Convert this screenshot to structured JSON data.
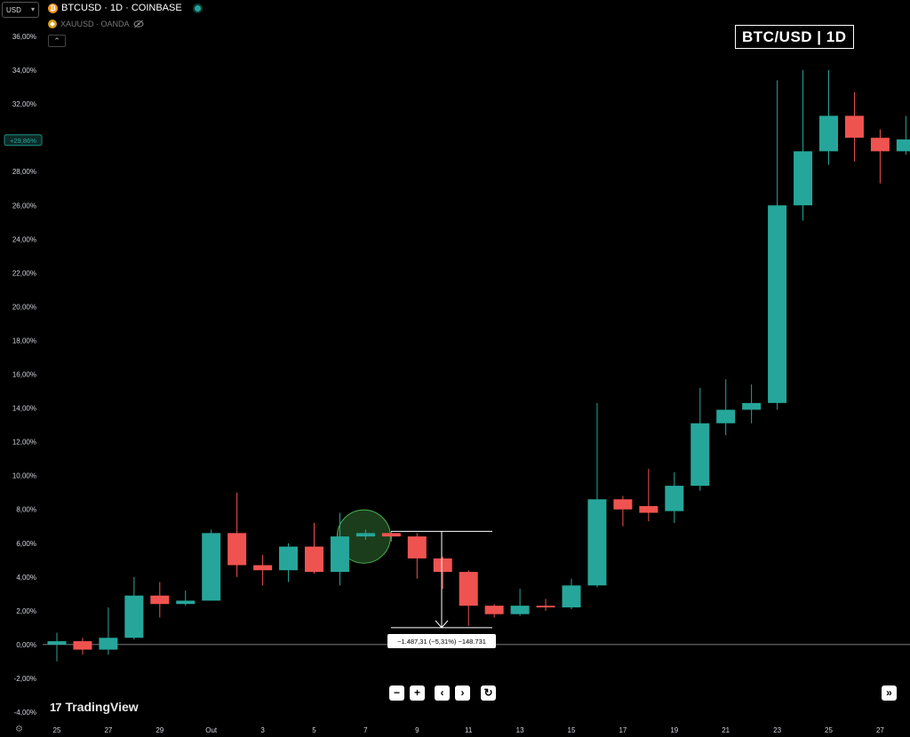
{
  "currency": {
    "value": "USD",
    "chevron": "chevron-down-icon"
  },
  "legend": {
    "symbol": "BTCUSD · 1D · COINBASE",
    "symbol_icon": "bitcoin-icon",
    "compare_symbol": "XAUUSD · OANDA",
    "compare_icon": "gold-icon",
    "hidden_icon": "eye-off-icon",
    "collapse_icon": "chevron-up-icon"
  },
  "title_box": "BTC/USD | 1D",
  "branding": "TradingView",
  "nav": {
    "zoom_out": "−",
    "zoom_in": "+",
    "back": "‹",
    "forward": "›",
    "reset": "↻",
    "to_end": "»"
  },
  "colors": {
    "up": "#26a69a",
    "down": "#ef5350",
    "price_tag": "#26a69a",
    "highlight": "#4caf50"
  },
  "chart_data": {
    "type": "candlestick",
    "title": "BTC/USD | 1D",
    "y_unit": "%",
    "ylim": [
      -4,
      36
    ],
    "y_ticks": [
      "36,00%",
      "34,00%",
      "32,00%",
      "30,00%",
      "28,00%",
      "26,00%",
      "24,00%",
      "22,00%",
      "20,00%",
      "18,00%",
      "16,00%",
      "14,00%",
      "12,00%",
      "10,00%",
      "8,00%",
      "6,00%",
      "4,00%",
      "2,00%",
      "0,00%",
      "-2,00%",
      "-4,00%"
    ],
    "x_tick_labels": [
      "25",
      "27",
      "29",
      "Out",
      "3",
      "5",
      "7",
      "9",
      "11",
      "13",
      "15",
      "17",
      "19",
      "21",
      "23",
      "25",
      "27"
    ],
    "candles": [
      {
        "date": "25",
        "o": 0.0,
        "h": 0.7,
        "l": -1.0,
        "c": 0.2
      },
      {
        "date": "26",
        "o": 0.2,
        "h": 0.4,
        "l": -0.6,
        "c": -0.3
      },
      {
        "date": "27",
        "o": -0.3,
        "h": 2.2,
        "l": -0.6,
        "c": 0.4
      },
      {
        "date": "28",
        "o": 0.4,
        "h": 4.0,
        "l": 0.3,
        "c": 2.9
      },
      {
        "date": "29",
        "o": 2.9,
        "h": 3.7,
        "l": 1.6,
        "c": 2.4
      },
      {
        "date": "30",
        "o": 2.4,
        "h": 3.2,
        "l": 2.3,
        "c": 2.6
      },
      {
        "date": "Out",
        "o": 2.6,
        "h": 6.8,
        "l": 2.6,
        "c": 6.6
      },
      {
        "date": "2",
        "o": 6.6,
        "h": 9.0,
        "l": 4.0,
        "c": 4.7
      },
      {
        "date": "3",
        "o": 4.7,
        "h": 5.3,
        "l": 3.5,
        "c": 4.4
      },
      {
        "date": "4",
        "o": 4.4,
        "h": 6.0,
        "l": 3.7,
        "c": 5.8
      },
      {
        "date": "5",
        "o": 5.8,
        "h": 7.2,
        "l": 4.2,
        "c": 4.3
      },
      {
        "date": "6",
        "o": 4.3,
        "h": 7.8,
        "l": 3.5,
        "c": 6.4
      },
      {
        "date": "7",
        "o": 6.4,
        "h": 6.8,
        "l": 6.2,
        "c": 6.6
      },
      {
        "date": "8",
        "o": 6.6,
        "h": 6.7,
        "l": 6.1,
        "c": 6.4
      },
      {
        "date": "9",
        "o": 6.4,
        "h": 6.6,
        "l": 3.9,
        "c": 5.1
      },
      {
        "date": "10",
        "o": 5.1,
        "h": 5.2,
        "l": 3.3,
        "c": 4.3
      },
      {
        "date": "11",
        "o": 4.3,
        "h": 4.4,
        "l": 1.1,
        "c": 2.3
      },
      {
        "date": "12",
        "o": 2.3,
        "h": 2.4,
        "l": 1.6,
        "c": 1.8
      },
      {
        "date": "13",
        "o": 1.8,
        "h": 3.3,
        "l": 1.7,
        "c": 2.3
      },
      {
        "date": "14",
        "o": 2.3,
        "h": 2.7,
        "l": 2.0,
        "c": 2.2
      },
      {
        "date": "15",
        "o": 2.2,
        "h": 3.9,
        "l": 2.1,
        "c": 3.5
      },
      {
        "date": "16",
        "o": 3.5,
        "h": 14.3,
        "l": 3.4,
        "c": 8.6
      },
      {
        "date": "17",
        "o": 8.6,
        "h": 8.8,
        "l": 7.0,
        "c": 8.0
      },
      {
        "date": "18",
        "o": 8.2,
        "h": 10.4,
        "l": 7.3,
        "c": 7.8
      },
      {
        "date": "19",
        "o": 7.9,
        "h": 10.2,
        "l": 7.2,
        "c": 9.4
      },
      {
        "date": "20",
        "o": 9.4,
        "h": 15.2,
        "l": 9.1,
        "c": 13.1
      },
      {
        "date": "21",
        "o": 13.1,
        "h": 15.7,
        "l": 12.4,
        "c": 13.9
      },
      {
        "date": "22",
        "o": 13.9,
        "h": 15.4,
        "l": 13.1,
        "c": 14.3
      },
      {
        "date": "23",
        "o": 14.3,
        "h": 33.4,
        "l": 13.9,
        "c": 26.0
      },
      {
        "date": "24",
        "o": 26.0,
        "h": 34.0,
        "l": 25.1,
        "c": 29.2
      },
      {
        "date": "25",
        "o": 29.2,
        "h": 34.0,
        "l": 28.4,
        "c": 31.3
      },
      {
        "date": "26",
        "o": 31.3,
        "h": 32.7,
        "l": 28.6,
        "c": 30.0
      },
      {
        "date": "27",
        "o": 30.0,
        "h": 30.5,
        "l": 27.3,
        "c": 29.2
      },
      {
        "date": "28",
        "o": 29.2,
        "h": 31.3,
        "l": 29.0,
        "c": 29.9
      }
    ],
    "last_price_label": "+29,86%",
    "last_value": 29.86,
    "zero_line": 0,
    "measure": {
      "from": 6.7,
      "to": 1.0,
      "label": "−1.487,31 (−5,31%) −148.731"
    },
    "highlight_candle": "7"
  }
}
